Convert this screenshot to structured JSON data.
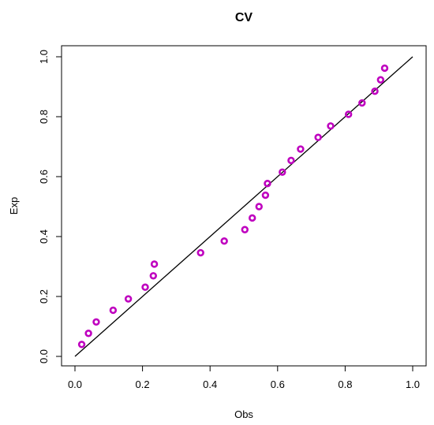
{
  "chart_data": {
    "type": "scatter",
    "title": "CV",
    "xlabel": "Obs",
    "ylabel": "Exp",
    "xlim": [
      0.0,
      1.0
    ],
    "ylim": [
      0.0,
      1.0
    ],
    "xticks": [
      "0.0",
      "0.2",
      "0.4",
      "0.6",
      "0.8",
      "1.0"
    ],
    "yticks": [
      "0.0",
      "0.2",
      "0.4",
      "0.6",
      "0.8",
      "1.0"
    ],
    "grid": false,
    "reference_line": {
      "x": [
        0,
        1
      ],
      "y": [
        0,
        1
      ],
      "color": "#000000"
    },
    "series": [
      {
        "marker_color": "#bf00bf",
        "points": [
          {
            "x": 0.02,
            "y": 0.04
          },
          {
            "x": 0.04,
            "y": 0.077
          },
          {
            "x": 0.063,
            "y": 0.115
          },
          {
            "x": 0.113,
            "y": 0.154
          },
          {
            "x": 0.158,
            "y": 0.192
          },
          {
            "x": 0.208,
            "y": 0.231
          },
          {
            "x": 0.232,
            "y": 0.269
          },
          {
            "x": 0.235,
            "y": 0.308
          },
          {
            "x": 0.372,
            "y": 0.346
          },
          {
            "x": 0.442,
            "y": 0.385
          },
          {
            "x": 0.503,
            "y": 0.423
          },
          {
            "x": 0.525,
            "y": 0.462
          },
          {
            "x": 0.545,
            "y": 0.5
          },
          {
            "x": 0.564,
            "y": 0.538
          },
          {
            "x": 0.57,
            "y": 0.577
          },
          {
            "x": 0.614,
            "y": 0.615
          },
          {
            "x": 0.64,
            "y": 0.654
          },
          {
            "x": 0.668,
            "y": 0.692
          },
          {
            "x": 0.72,
            "y": 0.731
          },
          {
            "x": 0.757,
            "y": 0.769
          },
          {
            "x": 0.81,
            "y": 0.808
          },
          {
            "x": 0.85,
            "y": 0.846
          },
          {
            "x": 0.888,
            "y": 0.885
          },
          {
            "x": 0.905,
            "y": 0.923
          },
          {
            "x": 0.917,
            "y": 0.962
          }
        ]
      }
    ]
  }
}
